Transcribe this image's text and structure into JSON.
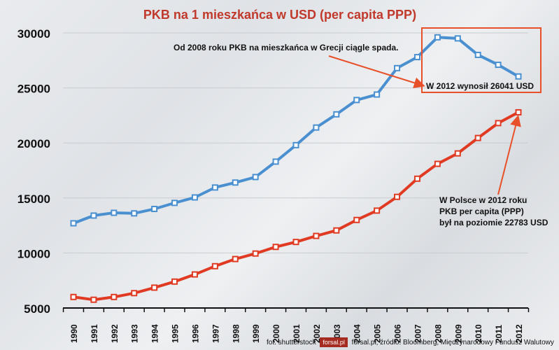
{
  "chart_data": {
    "type": "line",
    "title": "PKB na 1 mieszkańca w USD (per capita PPP)",
    "xlabel": "",
    "ylabel": "",
    "ylim": [
      5000,
      30000
    ],
    "yticks": [
      "5000",
      "10000",
      "15000",
      "20000",
      "25000",
      "30000"
    ],
    "grid": true,
    "categories": [
      "1990",
      "1991",
      "1992",
      "1993",
      "1994",
      "1995",
      "1996",
      "1997",
      "1998",
      "1999",
      "2000",
      "2001",
      "2002",
      "2003",
      "2004",
      "2005",
      "2006",
      "2007",
      "2008",
      "2009",
      "2010",
      "2011",
      "2012"
    ],
    "series": [
      {
        "key": "greece",
        "color": "#4a90d0",
        "values": [
          12700,
          13400,
          13650,
          13600,
          14000,
          14550,
          15050,
          15950,
          16400,
          16900,
          18300,
          19800,
          21400,
          22600,
          23900,
          24400,
          26800,
          27800,
          29600,
          29500,
          28000,
          27100,
          26041
        ]
      },
      {
        "key": "poland",
        "color": "#e03a22",
        "values": [
          6000,
          5750,
          6000,
          6350,
          6850,
          7400,
          8050,
          8800,
          9450,
          9950,
          10550,
          11000,
          11550,
          12050,
          13000,
          13850,
          15100,
          16750,
          18100,
          19050,
          20450,
          21800,
          22783
        ]
      }
    ],
    "annotations": {
      "greece_trend": "Od 2008 roku PKB na mieszkańca w Grecji ciągle spada.",
      "greece_2012": "W 2012 wynosił 26041 USD",
      "poland_line1": "W Polsce w 2012 roku",
      "poland_line2": "PKB per capita (PPP)",
      "poland_line3": "był na poziomie 22783 USD"
    },
    "title_color": "#c0392b",
    "annotation_color": "#e8502a"
  },
  "footer": {
    "photo": "fot. shutterstock",
    "logo": "forsal.pl",
    "source": "forsal.pl;  źródło: Bloomberg, Międzynarodowy Fundusz Walutowy"
  }
}
